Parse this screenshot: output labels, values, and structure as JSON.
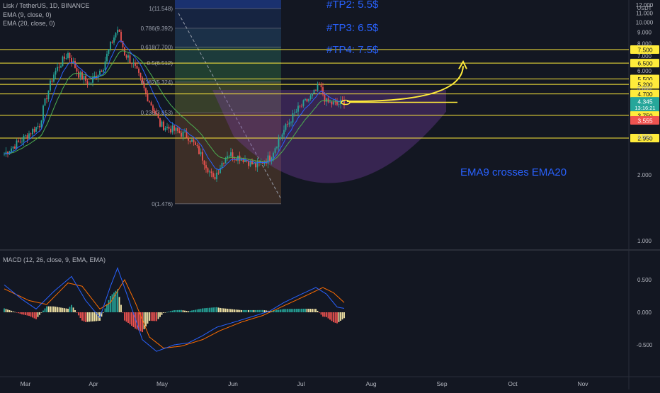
{
  "header": {
    "symbol_line": "Lisk / TetherUS, 1D, BINANCE",
    "ema9_line": "EMA (9, close, 0)",
    "ema20_line": "EMA (20, close, 0)",
    "macd_line": "MACD (12, 26, close, 9, EMA, EMA)",
    "currency": "USDT"
  },
  "annotations": {
    "tp2": "#TP2:  5.5$",
    "tp3": "#TP3: 6.5$",
    "tp4": "#TP4: 7.5$",
    "ema_cross": "EMA9 crosses EMA20"
  },
  "colors": {
    "background": "#131722",
    "up": "#26a69a",
    "down": "#ef5350",
    "ema9": "#2962ff",
    "ema20": "#4caf50",
    "level": "#ffeb3b",
    "macd": "#2962ff",
    "signal": "#ff6d00",
    "annotation": "#2962ff"
  },
  "chart_data": [
    {
      "type": "candlestick",
      "x_axis_labels": [
        "Mar",
        "Apr",
        "May",
        "Jun",
        "Jul",
        "Aug",
        "Sep",
        "Oct",
        "Nov"
      ],
      "ylim": [
        0.8,
        12.0
      ],
      "y_ticks": [
        "1.000",
        "2.000",
        "3.000",
        "4.000",
        "5.000",
        "6.000",
        "7.000",
        "8.000",
        "9.000",
        "10.000",
        "11.000",
        "12.000"
      ],
      "horizontal_levels": [
        "7.500",
        "6.500",
        "5.500",
        "5.200",
        "4.700",
        "3.750",
        "2.950"
      ],
      "price_badges": [
        {
          "label": "4.345",
          "sub": "13:16:21",
          "value": 4.345
        },
        {
          "label": "3.555",
          "value": 3.555
        }
      ],
      "fibonacci": [
        {
          "label": "1(11.548)",
          "value": 11.548
        },
        {
          "label": "0.786(9.392)",
          "value": 9.392
        },
        {
          "label": "0.618(7.700)",
          "value": 7.7
        },
        {
          "label": "0.5(6.512)",
          "value": 6.512
        },
        {
          "label": "0.382(5.324)",
          "value": 5.324
        },
        {
          "label": "0.236(3.853)",
          "value": 3.853
        },
        {
          "label": "0(1.476)",
          "value": 1.476
        }
      ],
      "close_path": [
        {
          "day": 0,
          "price": 2.5
        },
        {
          "day": 10,
          "price": 2.9
        },
        {
          "day": 20,
          "price": 3.4
        },
        {
          "day": 28,
          "price": 5.8
        },
        {
          "day": 36,
          "price": 7.2
        },
        {
          "day": 42,
          "price": 5.8
        },
        {
          "day": 48,
          "price": 5.2
        },
        {
          "day": 56,
          "price": 6.3
        },
        {
          "day": 61,
          "price": 8.2
        },
        {
          "day": 64,
          "price": 9.3
        },
        {
          "day": 68,
          "price": 7.2
        },
        {
          "day": 72,
          "price": 6.6
        },
        {
          "day": 80,
          "price": 4.7
        },
        {
          "day": 88,
          "price": 3.4
        },
        {
          "day": 96,
          "price": 3.2
        },
        {
          "day": 104,
          "price": 3.0
        },
        {
          "day": 112,
          "price": 2.4
        },
        {
          "day": 118,
          "price": 1.9
        },
        {
          "day": 126,
          "price": 2.5
        },
        {
          "day": 134,
          "price": 2.4
        },
        {
          "day": 142,
          "price": 2.2
        },
        {
          "day": 150,
          "price": 2.4
        },
        {
          "day": 158,
          "price": 3.2
        },
        {
          "day": 166,
          "price": 4.0
        },
        {
          "day": 174,
          "price": 4.6
        },
        {
          "day": 178,
          "price": 5.1
        },
        {
          "day": 182,
          "price": 4.3
        },
        {
          "day": 188,
          "price": 4.2
        },
        {
          "day": 192,
          "price": 4.35
        }
      ],
      "forecast_arrow_target": 6.5
    },
    {
      "type": "macd",
      "ylim": [
        -0.75,
        0.8
      ],
      "y_ticks": [
        "0.500",
        "0.000",
        "-0.500"
      ],
      "macd_path": [
        {
          "day": 0,
          "value": 0.42
        },
        {
          "day": 10,
          "value": 0.2
        },
        {
          "day": 18,
          "value": 0.05
        },
        {
          "day": 28,
          "value": 0.32
        },
        {
          "day": 38,
          "value": 0.55
        },
        {
          "day": 46,
          "value": 0.18
        },
        {
          "day": 54,
          "value": -0.08
        },
        {
          "day": 60,
          "value": 0.4
        },
        {
          "day": 64,
          "value": 0.68
        },
        {
          "day": 70,
          "value": 0.22
        },
        {
          "day": 78,
          "value": -0.42
        },
        {
          "day": 86,
          "value": -0.6
        },
        {
          "day": 96,
          "value": -0.5
        },
        {
          "day": 104,
          "value": -0.47
        },
        {
          "day": 112,
          "value": -0.36
        },
        {
          "day": 120,
          "value": -0.23
        },
        {
          "day": 130,
          "value": -0.15
        },
        {
          "day": 142,
          "value": -0.05
        },
        {
          "day": 150,
          "value": 0.02
        },
        {
          "day": 158,
          "value": 0.15
        },
        {
          "day": 168,
          "value": 0.28
        },
        {
          "day": 176,
          "value": 0.38
        },
        {
          "day": 182,
          "value": 0.28
        },
        {
          "day": 188,
          "value": 0.08
        },
        {
          "day": 192,
          "value": 0.06
        }
      ],
      "signal_path": [
        {
          "day": 0,
          "value": 0.36
        },
        {
          "day": 14,
          "value": 0.18
        },
        {
          "day": 24,
          "value": 0.12
        },
        {
          "day": 36,
          "value": 0.45
        },
        {
          "day": 44,
          "value": 0.4
        },
        {
          "day": 54,
          "value": 0.05
        },
        {
          "day": 60,
          "value": 0.15
        },
        {
          "day": 68,
          "value": 0.5
        },
        {
          "day": 74,
          "value": 0.15
        },
        {
          "day": 82,
          "value": -0.38
        },
        {
          "day": 90,
          "value": -0.55
        },
        {
          "day": 100,
          "value": -0.52
        },
        {
          "day": 112,
          "value": -0.42
        },
        {
          "day": 122,
          "value": -0.28
        },
        {
          "day": 134,
          "value": -0.15
        },
        {
          "day": 146,
          "value": -0.05
        },
        {
          "day": 158,
          "value": 0.1
        },
        {
          "day": 170,
          "value": 0.25
        },
        {
          "day": 180,
          "value": 0.38
        },
        {
          "day": 186,
          "value": 0.3
        },
        {
          "day": 192,
          "value": 0.15
        }
      ]
    }
  ]
}
